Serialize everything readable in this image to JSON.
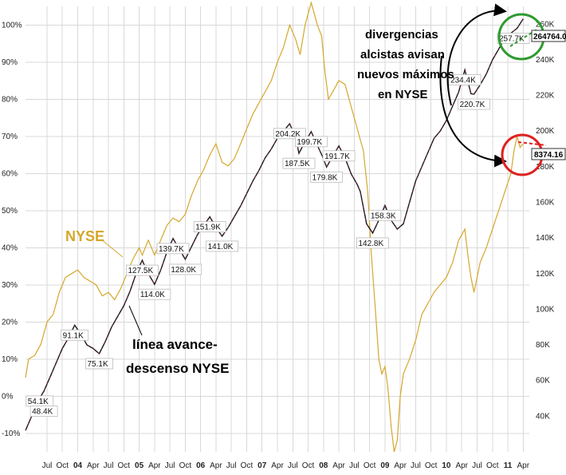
{
  "chart_data": {
    "type": "line",
    "left_axis": {
      "ticks": [
        "-10%",
        "0%",
        "10%",
        "20%",
        "30%",
        "40%",
        "50%",
        "60%",
        "70%",
        "80%",
        "90%",
        "100%"
      ],
      "values": [
        -10,
        0,
        10,
        20,
        30,
        40,
        50,
        60,
        70,
        80,
        90,
        100
      ],
      "range": [
        -15,
        105
      ]
    },
    "right_axis": {
      "ticks": [
        "40K",
        "60K",
        "80K",
        "100K",
        "120K",
        "140K",
        "160K",
        "180K",
        "200K",
        "220K",
        "240K",
        "260K"
      ],
      "values": [
        40,
        60,
        80,
        100,
        120,
        140,
        160,
        180,
        200,
        220,
        240,
        260
      ],
      "range": [
        20,
        270
      ]
    },
    "x_axis": {
      "labels": [
        {
          "t": 2003.5,
          "text": "Jul",
          "bold": false
        },
        {
          "t": 2003.75,
          "text": "Oct",
          "bold": false
        },
        {
          "t": 2004.0,
          "text": "04",
          "bold": true
        },
        {
          "t": 2004.25,
          "text": "Apr",
          "bold": false
        },
        {
          "t": 2004.5,
          "text": "Jul",
          "bold": false
        },
        {
          "t": 2004.75,
          "text": "Oct",
          "bold": false
        },
        {
          "t": 2005.0,
          "text": "05",
          "bold": true
        },
        {
          "t": 2005.25,
          "text": "Apr",
          "bold": false
        },
        {
          "t": 2005.5,
          "text": "Jul",
          "bold": false
        },
        {
          "t": 2005.75,
          "text": "Oct",
          "bold": false
        },
        {
          "t": 2006.0,
          "text": "06",
          "bold": true
        },
        {
          "t": 2006.25,
          "text": "Apr",
          "bold": false
        },
        {
          "t": 2006.5,
          "text": "Jul",
          "bold": false
        },
        {
          "t": 2006.75,
          "text": "Oct",
          "bold": false
        },
        {
          "t": 2007.0,
          "text": "07",
          "bold": true
        },
        {
          "t": 2007.25,
          "text": "Apr",
          "bold": false
        },
        {
          "t": 2007.5,
          "text": "Jul",
          "bold": false
        },
        {
          "t": 2007.75,
          "text": "Oct",
          "bold": false
        },
        {
          "t": 2008.0,
          "text": "08",
          "bold": true
        },
        {
          "t": 2008.25,
          "text": "Apr",
          "bold": false
        },
        {
          "t": 2008.5,
          "text": "Jul",
          "bold": false
        },
        {
          "t": 2008.75,
          "text": "Oct",
          "bold": false
        },
        {
          "t": 2009.0,
          "text": "09",
          "bold": true
        },
        {
          "t": 2009.25,
          "text": "Apr",
          "bold": false
        },
        {
          "t": 2009.5,
          "text": "Jul",
          "bold": false
        },
        {
          "t": 2009.75,
          "text": "Oct",
          "bold": false
        },
        {
          "t": 2010.0,
          "text": "10",
          "bold": true
        },
        {
          "t": 2010.25,
          "text": "Apr",
          "bold": false
        },
        {
          "t": 2010.5,
          "text": "Jul",
          "bold": false
        },
        {
          "t": 2010.75,
          "text": "Oct",
          "bold": false
        },
        {
          "t": 2011.0,
          "text": "11",
          "bold": true
        },
        {
          "t": 2011.25,
          "text": "Apr",
          "bold": false
        }
      ],
      "range": [
        2003.15,
        2011.35
      ]
    },
    "series": [
      {
        "name": "NYSE",
        "color": "#d4a72c",
        "axis": "left",
        "points": [
          [
            2003.15,
            5
          ],
          [
            2003.2,
            10
          ],
          [
            2003.3,
            11
          ],
          [
            2003.4,
            14
          ],
          [
            2003.5,
            20
          ],
          [
            2003.6,
            22
          ],
          [
            2003.7,
            28
          ],
          [
            2003.8,
            32
          ],
          [
            2003.9,
            33
          ],
          [
            2004.0,
            34
          ],
          [
            2004.1,
            32
          ],
          [
            2004.2,
            31
          ],
          [
            2004.3,
            30
          ],
          [
            2004.4,
            27
          ],
          [
            2004.5,
            28
          ],
          [
            2004.6,
            26
          ],
          [
            2004.7,
            29
          ],
          [
            2004.8,
            33
          ],
          [
            2004.9,
            37
          ],
          [
            2005.0,
            40
          ],
          [
            2005.05,
            38
          ],
          [
            2005.15,
            42
          ],
          [
            2005.25,
            38
          ],
          [
            2005.35,
            42
          ],
          [
            2005.45,
            46
          ],
          [
            2005.55,
            48
          ],
          [
            2005.65,
            47
          ],
          [
            2005.75,
            49
          ],
          [
            2005.85,
            54
          ],
          [
            2005.95,
            58
          ],
          [
            2006.05,
            61
          ],
          [
            2006.15,
            65
          ],
          [
            2006.25,
            68
          ],
          [
            2006.35,
            63
          ],
          [
            2006.45,
            62
          ],
          [
            2006.55,
            64
          ],
          [
            2006.65,
            68
          ],
          [
            2006.75,
            72
          ],
          [
            2006.85,
            76
          ],
          [
            2006.95,
            79
          ],
          [
            2007.05,
            82
          ],
          [
            2007.15,
            85
          ],
          [
            2007.25,
            90
          ],
          [
            2007.35,
            94
          ],
          [
            2007.45,
            100
          ],
          [
            2007.55,
            96
          ],
          [
            2007.62,
            92
          ],
          [
            2007.7,
            100
          ],
          [
            2007.8,
            106
          ],
          [
            2007.9,
            100
          ],
          [
            2007.97,
            97
          ],
          [
            2008.02,
            88
          ],
          [
            2008.08,
            80
          ],
          [
            2008.15,
            82
          ],
          [
            2008.25,
            85
          ],
          [
            2008.35,
            84
          ],
          [
            2008.45,
            78
          ],
          [
            2008.55,
            72
          ],
          [
            2008.65,
            66
          ],
          [
            2008.72,
            55
          ],
          [
            2008.78,
            38
          ],
          [
            2008.85,
            22
          ],
          [
            2008.9,
            10
          ],
          [
            2008.95,
            6
          ],
          [
            2009.0,
            8
          ],
          [
            2009.05,
            2
          ],
          [
            2009.1,
            -8
          ],
          [
            2009.15,
            -15
          ],
          [
            2009.2,
            -12
          ],
          [
            2009.25,
            0
          ],
          [
            2009.3,
            6
          ],
          [
            2009.4,
            10
          ],
          [
            2009.5,
            15
          ],
          [
            2009.6,
            22
          ],
          [
            2009.7,
            25
          ],
          [
            2009.8,
            28
          ],
          [
            2009.9,
            30
          ],
          [
            2010.0,
            32
          ],
          [
            2010.1,
            36
          ],
          [
            2010.2,
            42
          ],
          [
            2010.3,
            45
          ],
          [
            2010.35,
            38
          ],
          [
            2010.4,
            32
          ],
          [
            2010.45,
            28
          ],
          [
            2010.55,
            36
          ],
          [
            2010.65,
            40
          ],
          [
            2010.75,
            45
          ],
          [
            2010.85,
            50
          ],
          [
            2010.95,
            55
          ],
          [
            2011.05,
            60
          ],
          [
            2011.1,
            66
          ],
          [
            2011.15,
            70
          ],
          [
            2011.2,
            67
          ],
          [
            2011.25,
            68
          ]
        ]
      },
      {
        "name": "línea avance-descenso NYSE",
        "color": "#1a1a1a",
        "axis": "right",
        "points": [
          [
            2003.15,
            32
          ],
          [
            2003.25,
            40
          ],
          [
            2003.35,
            48.4
          ],
          [
            2003.45,
            54.1
          ],
          [
            2003.55,
            62
          ],
          [
            2003.65,
            70
          ],
          [
            2003.75,
            78
          ],
          [
            2003.85,
            84
          ],
          [
            2003.95,
            91.1
          ],
          [
            2004.05,
            86
          ],
          [
            2004.15,
            80
          ],
          [
            2004.25,
            78
          ],
          [
            2004.35,
            75.1
          ],
          [
            2004.45,
            82
          ],
          [
            2004.55,
            90
          ],
          [
            2004.65,
            96
          ],
          [
            2004.75,
            102
          ],
          [
            2004.85,
            110
          ],
          [
            2004.95,
            120
          ],
          [
            2005.05,
            127.5
          ],
          [
            2005.15,
            120
          ],
          [
            2005.25,
            114.0
          ],
          [
            2005.35,
            122
          ],
          [
            2005.45,
            132
          ],
          [
            2005.55,
            139.7
          ],
          [
            2005.65,
            134
          ],
          [
            2005.75,
            128.0
          ],
          [
            2005.85,
            135
          ],
          [
            2005.95,
            142
          ],
          [
            2006.05,
            147
          ],
          [
            2006.15,
            151.9
          ],
          [
            2006.25,
            146
          ],
          [
            2006.35,
            141.0
          ],
          [
            2006.45,
            146
          ],
          [
            2006.55,
            152
          ],
          [
            2006.65,
            158
          ],
          [
            2006.75,
            165
          ],
          [
            2006.85,
            172
          ],
          [
            2006.95,
            178
          ],
          [
            2007.05,
            185
          ],
          [
            2007.15,
            190
          ],
          [
            2007.25,
            196
          ],
          [
            2007.35,
            200
          ],
          [
            2007.45,
            204.2
          ],
          [
            2007.55,
            196
          ],
          [
            2007.6,
            187.5
          ],
          [
            2007.7,
            194
          ],
          [
            2007.8,
            199.7
          ],
          [
            2007.9,
            192
          ],
          [
            2007.98,
            186
          ],
          [
            2008.05,
            179.8
          ],
          [
            2008.15,
            186
          ],
          [
            2008.25,
            191.7
          ],
          [
            2008.35,
            185
          ],
          [
            2008.45,
            176
          ],
          [
            2008.55,
            170
          ],
          [
            2008.6,
            166
          ],
          [
            2008.7,
            148
          ],
          [
            2008.8,
            142.8
          ],
          [
            2008.9,
            150
          ],
          [
            2009.0,
            158.3
          ],
          [
            2009.1,
            150
          ],
          [
            2009.2,
            145
          ],
          [
            2009.3,
            148
          ],
          [
            2009.4,
            160
          ],
          [
            2009.5,
            172
          ],
          [
            2009.6,
            180
          ],
          [
            2009.7,
            188
          ],
          [
            2009.8,
            196
          ],
          [
            2009.9,
            200
          ],
          [
            2010.0,
            206
          ],
          [
            2010.1,
            214
          ],
          [
            2010.2,
            222
          ],
          [
            2010.3,
            234.4
          ],
          [
            2010.35,
            228
          ],
          [
            2010.4,
            221
          ],
          [
            2010.45,
            220.7
          ],
          [
            2010.55,
            226
          ],
          [
            2010.65,
            232
          ],
          [
            2010.75,
            240
          ],
          [
            2010.85,
            246
          ],
          [
            2010.95,
            252
          ],
          [
            2011.05,
            255
          ],
          [
            2011.15,
            257.7
          ],
          [
            2011.25,
            263
          ]
        ]
      }
    ],
    "value_labels": [
      {
        "t": 2003.38,
        "v": 54.1,
        "text": "54.1K",
        "axis": "right"
      },
      {
        "t": 2003.45,
        "v": 48.4,
        "text": "48.4K",
        "axis": "right"
      },
      {
        "t": 2003.95,
        "v": 91.1,
        "text": "91.1K",
        "axis": "right"
      },
      {
        "t": 2004.35,
        "v": 75.1,
        "text": "75.1K",
        "axis": "right"
      },
      {
        "t": 2005.05,
        "v": 127.5,
        "text": "127.5K",
        "axis": "right"
      },
      {
        "t": 2005.25,
        "v": 114.0,
        "text": "114.0K",
        "axis": "right"
      },
      {
        "t": 2005.55,
        "v": 139.7,
        "text": "139.7K",
        "axis": "right"
      },
      {
        "t": 2005.75,
        "v": 128.0,
        "text": "128.0K",
        "axis": "right"
      },
      {
        "t": 2006.15,
        "v": 151.9,
        "text": "151.9K",
        "axis": "right"
      },
      {
        "t": 2006.35,
        "v": 141.0,
        "text": "141.0K",
        "axis": "right"
      },
      {
        "t": 2007.45,
        "v": 204.2,
        "text": "204.2K",
        "axis": "right"
      },
      {
        "t": 2007.6,
        "v": 187.5,
        "text": "187.5K",
        "axis": "right"
      },
      {
        "t": 2007.8,
        "v": 199.7,
        "text": "199.7K",
        "axis": "right"
      },
      {
        "t": 2008.05,
        "v": 179.8,
        "text": "179.8K",
        "axis": "right"
      },
      {
        "t": 2008.25,
        "v": 191.7,
        "text": "191.7K",
        "axis": "right"
      },
      {
        "t": 2008.8,
        "v": 142.8,
        "text": "142.8K",
        "axis": "right"
      },
      {
        "t": 2009.0,
        "v": 158.3,
        "text": "158.3K",
        "axis": "right"
      },
      {
        "t": 2010.3,
        "v": 234.4,
        "text": "234.4K",
        "axis": "right"
      },
      {
        "t": 2010.45,
        "v": 220.7,
        "text": "220.7K",
        "axis": "right"
      },
      {
        "t": 2011.15,
        "v": 257.7,
        "text": "257.7K",
        "axis": "right"
      }
    ],
    "last_values": [
      {
        "text": "264764.0",
        "v": 263,
        "axis": "right"
      },
      {
        "text": "8374.16",
        "v": 68,
        "axis": "left"
      }
    ],
    "annotations": [
      {
        "text": "NYSE",
        "color": "#d4a72c"
      },
      {
        "lines": [
          "línea avance-",
          "descenso NYSE"
        ],
        "color": "#000000"
      },
      {
        "lines": [
          "divergencias",
          "alcistas avisan",
          "nuevos máximos",
          "en NYSE"
        ],
        "color": "#000000"
      }
    ],
    "highlight_colors": {
      "green": "#2e9a2e",
      "red": "#e02020"
    },
    "grid": true
  }
}
